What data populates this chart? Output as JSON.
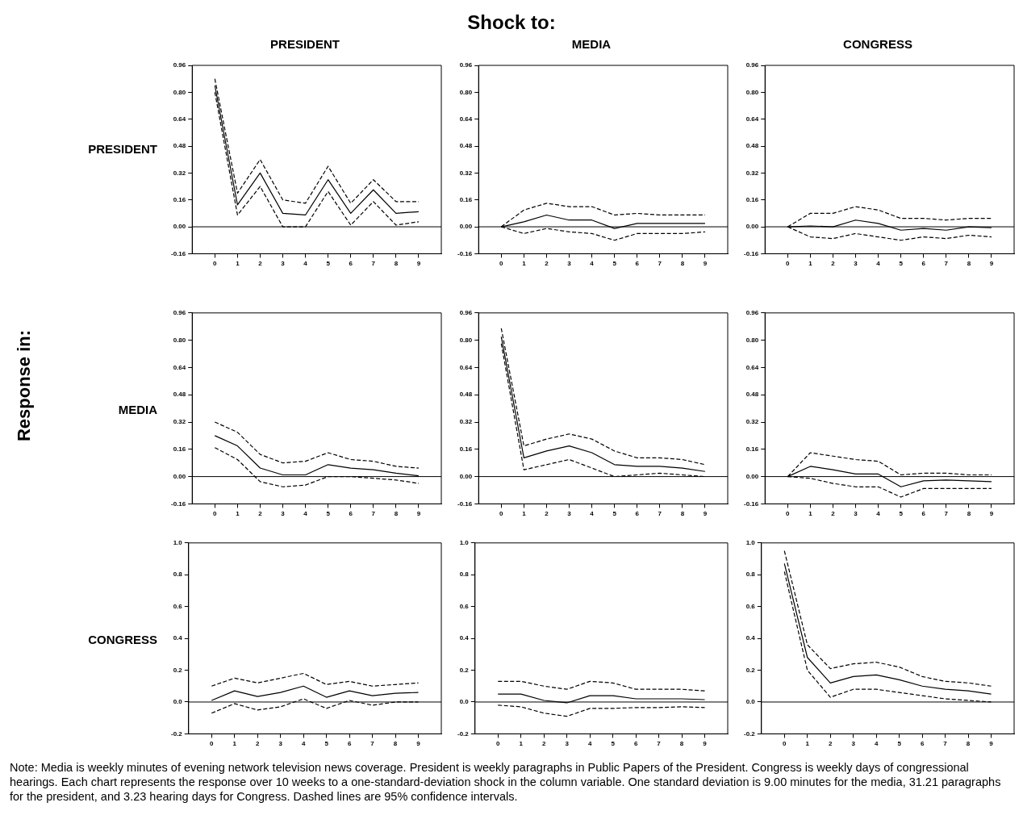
{
  "chart_data": [
    {
      "type": "line",
      "title": "PRESIDENT",
      "ylabel": "PRESIDENT",
      "x": [
        0,
        1,
        2,
        3,
        4,
        5,
        6,
        7,
        8,
        9
      ],
      "xlim": [
        -1,
        10
      ],
      "xticks": [
        0,
        1,
        2,
        3,
        4,
        5,
        6,
        7,
        8,
        9
      ],
      "ylim": [
        -0.16,
        0.96
      ],
      "yticks": [
        -0.16,
        {
          "value": 0,
          "label": "0.00"
        },
        0.16,
        0.32,
        0.48,
        0.64,
        {
          "value": 0.8,
          "label": "0.80"
        },
        0.96
      ],
      "marker": "none",
      "grid": false,
      "ref_lines": [
        {
          "axis": "y",
          "value": 0
        }
      ],
      "series": [
        {
          "color": "#000000",
          "line_style": "solid",
          "values": [
            0.84,
            0.13,
            0.32,
            0.08,
            0.07,
            0.28,
            0.08,
            0.22,
            0.08,
            0.09
          ]
        },
        {
          "color": "#000000",
          "line_style": "dashed",
          "values": [
            0.88,
            0.2,
            0.4,
            0.16,
            0.14,
            0.36,
            0.14,
            0.28,
            0.15,
            0.15
          ]
        },
        {
          "color": "#000000",
          "line_style": "dashed",
          "values": [
            0.8,
            0.07,
            0.24,
            0.0,
            0.0,
            0.21,
            0.01,
            0.15,
            0.01,
            0.03
          ]
        }
      ]
    },
    {
      "type": "line",
      "title": "MEDIA",
      "x": [
        0,
        1,
        2,
        3,
        4,
        5,
        6,
        7,
        8,
        9
      ],
      "xlim": [
        -1,
        10
      ],
      "xticks": [
        0,
        1,
        2,
        3,
        4,
        5,
        6,
        7,
        8,
        9
      ],
      "ylim": [
        -0.16,
        0.96
      ],
      "yticks": [
        -0.16,
        {
          "value": 0,
          "label": "0.00"
        },
        0.16,
        0.32,
        0.48,
        0.64,
        {
          "value": 0.8,
          "label": "0.80"
        },
        0.96
      ],
      "marker": "none",
      "grid": false,
      "ref_lines": [
        {
          "axis": "y",
          "value": 0
        }
      ],
      "series": [
        {
          "color": "#000000",
          "line_style": "solid",
          "values": [
            0,
            0.03,
            0.07,
            0.04,
            0.04,
            -0.01,
            0.02,
            0.02,
            0.02,
            0.02
          ]
        },
        {
          "color": "#000000",
          "line_style": "dashed",
          "values": [
            0,
            0.1,
            0.14,
            0.12,
            0.12,
            0.07,
            0.08,
            0.07,
            0.07,
            0.07
          ]
        },
        {
          "color": "#000000",
          "line_style": "dashed",
          "values": [
            0,
            -0.04,
            -0.01,
            -0.03,
            -0.04,
            -0.08,
            -0.04,
            -0.04,
            -0.04,
            -0.03
          ]
        }
      ]
    },
    {
      "type": "line",
      "title": "CONGRESS",
      "x": [
        0,
        1,
        2,
        3,
        4,
        5,
        6,
        7,
        8,
        9
      ],
      "xlim": [
        -1,
        10
      ],
      "xticks": [
        0,
        1,
        2,
        3,
        4,
        5,
        6,
        7,
        8,
        9
      ],
      "ylim": [
        -0.16,
        0.96
      ],
      "yticks": [
        -0.16,
        {
          "value": 0,
          "label": "0.00"
        },
        0.16,
        0.32,
        0.48,
        0.64,
        {
          "value": 0.8,
          "label": "0.80"
        },
        0.96
      ],
      "marker": "none",
      "grid": false,
      "ref_lines": [
        {
          "axis": "y",
          "value": 0
        }
      ],
      "series": [
        {
          "color": "#000000",
          "line_style": "solid",
          "values": [
            0,
            0.005,
            0,
            0.04,
            0.02,
            -0.02,
            -0.01,
            -0.02,
            0,
            -0.005
          ]
        },
        {
          "color": "#000000",
          "line_style": "dashed",
          "values": [
            0,
            0.08,
            0.08,
            0.12,
            0.1,
            0.05,
            0.05,
            0.04,
            0.05,
            0.05
          ]
        },
        {
          "color": "#000000",
          "line_style": "dashed",
          "values": [
            0,
            -0.06,
            -0.07,
            -0.04,
            -0.06,
            -0.08,
            -0.06,
            -0.07,
            -0.05,
            -0.06
          ]
        }
      ]
    },
    {
      "type": "line",
      "ylabel": "MEDIA",
      "x": [
        0,
        1,
        2,
        3,
        4,
        5,
        6,
        7,
        8,
        9
      ],
      "xlim": [
        -1,
        10
      ],
      "xticks": [
        0,
        1,
        2,
        3,
        4,
        5,
        6,
        7,
        8,
        9
      ],
      "ylim": [
        -0.16,
        0.96
      ],
      "yticks": [
        -0.16,
        {
          "value": 0,
          "label": "0.00"
        },
        0.16,
        0.32,
        0.48,
        0.64,
        {
          "value": 0.8,
          "label": "0.80"
        },
        0.96
      ],
      "marker": "none",
      "grid": false,
      "ref_lines": [
        {
          "axis": "y",
          "value": 0
        }
      ],
      "series": [
        {
          "color": "#000000",
          "line_style": "solid",
          "values": [
            0.24,
            0.18,
            0.05,
            0.01,
            0.01,
            0.07,
            0.05,
            0.04,
            0.02,
            0.005
          ]
        },
        {
          "color": "#000000",
          "line_style": "dashed",
          "values": [
            0.32,
            0.26,
            0.13,
            0.08,
            0.09,
            0.14,
            0.1,
            0.09,
            0.06,
            0.05
          ]
        },
        {
          "color": "#000000",
          "line_style": "dashed",
          "values": [
            0.17,
            0.1,
            -0.03,
            -0.06,
            -0.05,
            0.0,
            0.0,
            -0.01,
            -0.02,
            -0.04
          ]
        }
      ]
    },
    {
      "type": "line",
      "x": [
        0,
        1,
        2,
        3,
        4,
        5,
        6,
        7,
        8,
        9
      ],
      "xlim": [
        -1,
        10
      ],
      "xticks": [
        0,
        1,
        2,
        3,
        4,
        5,
        6,
        7,
        8,
        9
      ],
      "ylim": [
        -0.16,
        0.96
      ],
      "yticks": [
        -0.16,
        {
          "value": 0,
          "label": "0.00"
        },
        0.16,
        0.32,
        0.48,
        0.64,
        {
          "value": 0.8,
          "label": "0.80"
        },
        0.96
      ],
      "marker": "none",
      "grid": false,
      "ref_lines": [
        {
          "axis": "y",
          "value": 0
        }
      ],
      "series": [
        {
          "color": "#000000",
          "line_style": "solid",
          "values": [
            0.82,
            0.11,
            0.15,
            0.18,
            0.14,
            0.07,
            0.06,
            0.06,
            0.05,
            0.03
          ]
        },
        {
          "color": "#000000",
          "line_style": "dashed",
          "values": [
            0.87,
            0.18,
            0.22,
            0.25,
            0.22,
            0.15,
            0.11,
            0.11,
            0.1,
            0.07
          ]
        },
        {
          "color": "#000000",
          "line_style": "dashed",
          "values": [
            0.78,
            0.04,
            0.07,
            0.1,
            0.05,
            0.0,
            0.01,
            0.02,
            0.01,
            0.0
          ]
        }
      ]
    },
    {
      "type": "line",
      "x": [
        0,
        1,
        2,
        3,
        4,
        5,
        6,
        7,
        8,
        9
      ],
      "xlim": [
        -1,
        10
      ],
      "xticks": [
        0,
        1,
        2,
        3,
        4,
        5,
        6,
        7,
        8,
        9
      ],
      "ylim": [
        -0.16,
        0.96
      ],
      "yticks": [
        -0.16,
        {
          "value": 0,
          "label": "0.00"
        },
        0.16,
        0.32,
        0.48,
        0.64,
        {
          "value": 0.8,
          "label": "0.80"
        },
        0.96
      ],
      "marker": "none",
      "grid": false,
      "ref_lines": [
        {
          "axis": "y",
          "value": 0
        }
      ],
      "series": [
        {
          "color": "#000000",
          "line_style": "solid",
          "values": [
            0,
            0.06,
            0.04,
            0.015,
            0.015,
            -0.06,
            -0.025,
            -0.02,
            -0.025,
            -0.03
          ]
        },
        {
          "color": "#000000",
          "line_style": "dashed",
          "values": [
            0,
            0.14,
            0.12,
            0.1,
            0.09,
            0.01,
            0.02,
            0.02,
            0.01,
            0.01
          ]
        },
        {
          "color": "#000000",
          "line_style": "dashed",
          "values": [
            0,
            -0.01,
            -0.04,
            -0.06,
            -0.06,
            -0.12,
            -0.07,
            -0.07,
            -0.07,
            -0.07
          ]
        }
      ]
    },
    {
      "type": "line",
      "ylabel": "CONGRESS",
      "x": [
        0,
        1,
        2,
        3,
        4,
        5,
        6,
        7,
        8,
        9
      ],
      "xlim": [
        -1,
        10
      ],
      "xticks": [
        0,
        1,
        2,
        3,
        4,
        5,
        6,
        7,
        8,
        9
      ],
      "ylim": [
        -0.2,
        1.0
      ],
      "yticks": [
        -0.2,
        {
          "value": 0,
          "label": "0.0"
        },
        0.2,
        0.4,
        0.6,
        0.8,
        {
          "value": 1,
          "label": "1.0"
        }
      ],
      "marker": "none",
      "grid": false,
      "ref_lines": [
        {
          "axis": "y",
          "value": 0
        }
      ],
      "series": [
        {
          "color": "#000000",
          "line_style": "solid",
          "values": [
            0.01,
            0.07,
            0.035,
            0.06,
            0.1,
            0.03,
            0.07,
            0.04,
            0.055,
            0.06
          ]
        },
        {
          "color": "#000000",
          "line_style": "dashed",
          "values": [
            0.1,
            0.15,
            0.12,
            0.15,
            0.18,
            0.11,
            0.13,
            0.1,
            0.11,
            0.12
          ]
        },
        {
          "color": "#000000",
          "line_style": "dashed",
          "values": [
            -0.07,
            -0.01,
            -0.05,
            -0.03,
            0.02,
            -0.04,
            0.01,
            -0.02,
            0.0,
            0.0
          ]
        }
      ]
    },
    {
      "type": "line",
      "x": [
        0,
        1,
        2,
        3,
        4,
        5,
        6,
        7,
        8,
        9
      ],
      "xlim": [
        -1,
        10
      ],
      "xticks": [
        0,
        1,
        2,
        3,
        4,
        5,
        6,
        7,
        8,
        9
      ],
      "ylim": [
        -0.2,
        1.0
      ],
      "yticks": [
        -0.2,
        {
          "value": 0,
          "label": "0.0"
        },
        0.2,
        0.4,
        0.6,
        0.8,
        {
          "value": 1,
          "label": "1.0"
        }
      ],
      "marker": "none",
      "grid": false,
      "ref_lines": [
        {
          "axis": "y",
          "value": 0
        }
      ],
      "series": [
        {
          "color": "#000000",
          "line_style": "solid",
          "values": [
            0.05,
            0.05,
            0.01,
            -0.005,
            0.04,
            0.04,
            0.02,
            0.02,
            0.02,
            0.015
          ]
        },
        {
          "color": "#000000",
          "line_style": "dashed",
          "values": [
            0.13,
            0.13,
            0.1,
            0.08,
            0.13,
            0.12,
            0.08,
            0.08,
            0.08,
            0.07
          ]
        },
        {
          "color": "#000000",
          "line_style": "dashed",
          "values": [
            -0.02,
            -0.03,
            -0.07,
            -0.09,
            -0.04,
            -0.04,
            -0.035,
            -0.035,
            -0.03,
            -0.035
          ]
        }
      ]
    },
    {
      "type": "line",
      "x": [
        0,
        1,
        2,
        3,
        4,
        5,
        6,
        7,
        8,
        9
      ],
      "xlim": [
        -1,
        10
      ],
      "xticks": [
        0,
        1,
        2,
        3,
        4,
        5,
        6,
        7,
        8,
        9
      ],
      "ylim": [
        -0.2,
        1.0
      ],
      "yticks": [
        -0.2,
        {
          "value": 0,
          "label": "0.0"
        },
        0.2,
        0.4,
        0.6,
        0.8,
        {
          "value": 1,
          "label": "1.0"
        }
      ],
      "marker": "none",
      "grid": false,
      "ref_lines": [
        {
          "axis": "y",
          "value": 0
        }
      ],
      "series": [
        {
          "color": "#000000",
          "line_style": "solid",
          "values": [
            0.87,
            0.28,
            0.12,
            0.16,
            0.17,
            0.14,
            0.1,
            0.08,
            0.07,
            0.05
          ]
        },
        {
          "color": "#000000",
          "line_style": "dashed",
          "values": [
            0.95,
            0.36,
            0.21,
            0.24,
            0.25,
            0.22,
            0.16,
            0.13,
            0.12,
            0.1
          ]
        },
        {
          "color": "#000000",
          "line_style": "dashed",
          "values": [
            0.82,
            0.2,
            0.03,
            0.08,
            0.08,
            0.06,
            0.04,
            0.02,
            0.01,
            0.0
          ]
        }
      ]
    },
    {
      "type": "other",
      "title": "Shock to:",
      "ylabel": "Response in:",
      "annotations": [
        "Note: Media is weekly minutes of evening network television news coverage. President is weekly paragraphs in Public Papers of the President. Congress is weekly days of congressional hearings. Each chart represents the response over 10 weeks to a one-standard-deviation shock in the column variable. One standard deviation is 9.00 minutes for the media, 31.21 paragraphs for the president, and 3.23 hearing days for Congress. Dashed lines are 95% confidence intervals."
      ]
    }
  ]
}
